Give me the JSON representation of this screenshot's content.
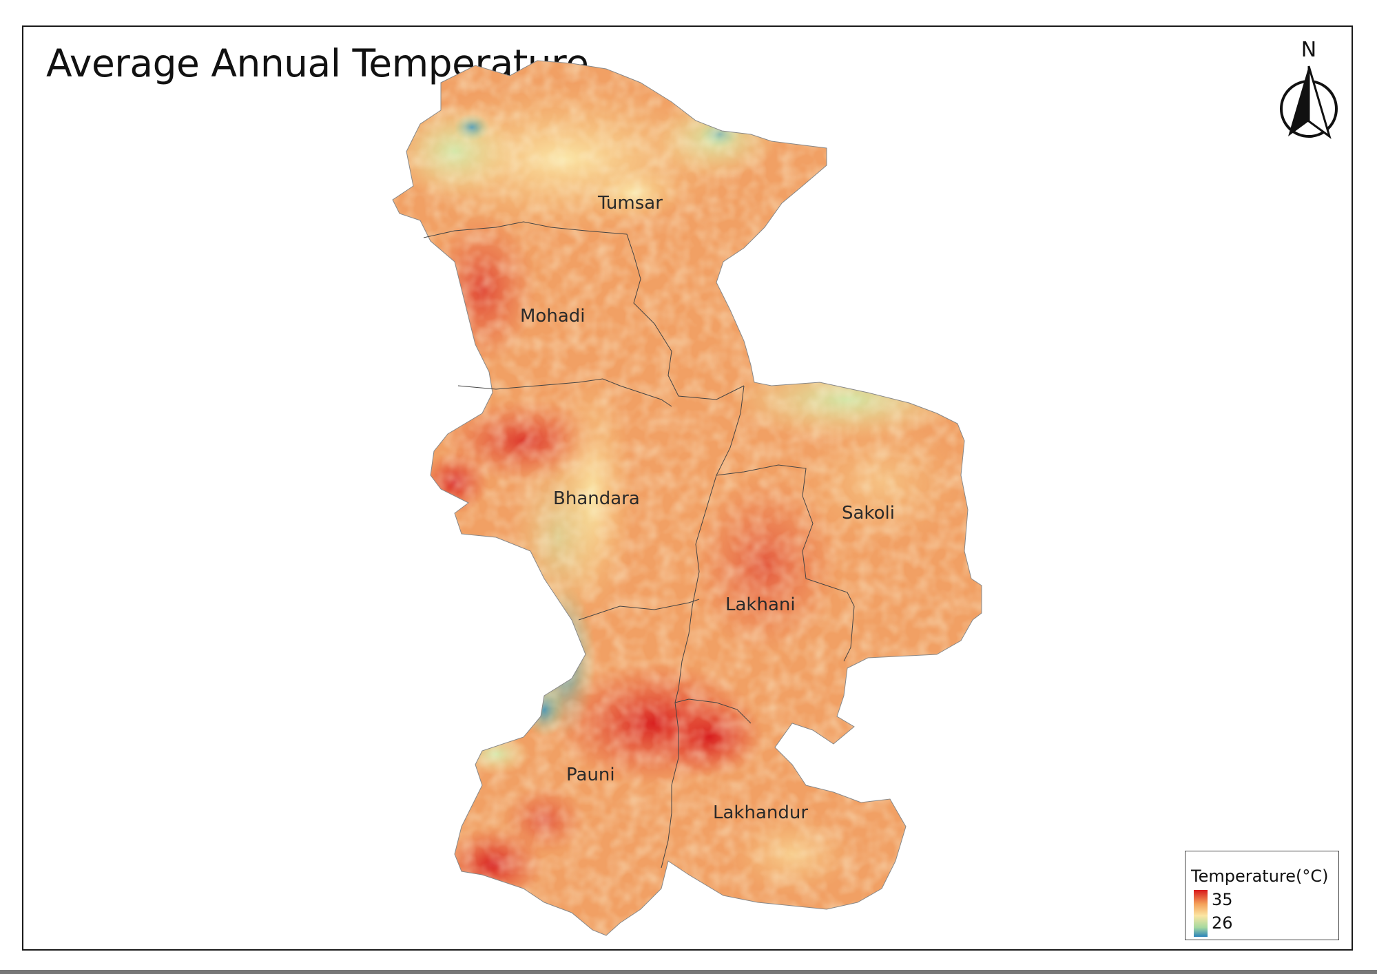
{
  "map": {
    "title": "Average Annual Temperature",
    "north_label": "N",
    "regions": [
      {
        "id": "tumsar",
        "name": "Tumsar"
      },
      {
        "id": "mohadi",
        "name": "Mohadi"
      },
      {
        "id": "bhandara",
        "name": "Bhandara"
      },
      {
        "id": "sakoli",
        "name": "Sakoli"
      },
      {
        "id": "lakhani",
        "name": "Lakhani"
      },
      {
        "id": "pauni",
        "name": "Pauni"
      },
      {
        "id": "lakhandur",
        "name": "Lakhandur"
      }
    ]
  },
  "legend": {
    "title": "Temperature(°C)",
    "max": "35",
    "min": "26",
    "colors": {
      "hot": "#d7191c",
      "mid_warm": "#f4a25a",
      "mid": "#fbe6a3",
      "cool": "#a6d9a0",
      "cold": "#2b83ba"
    }
  }
}
